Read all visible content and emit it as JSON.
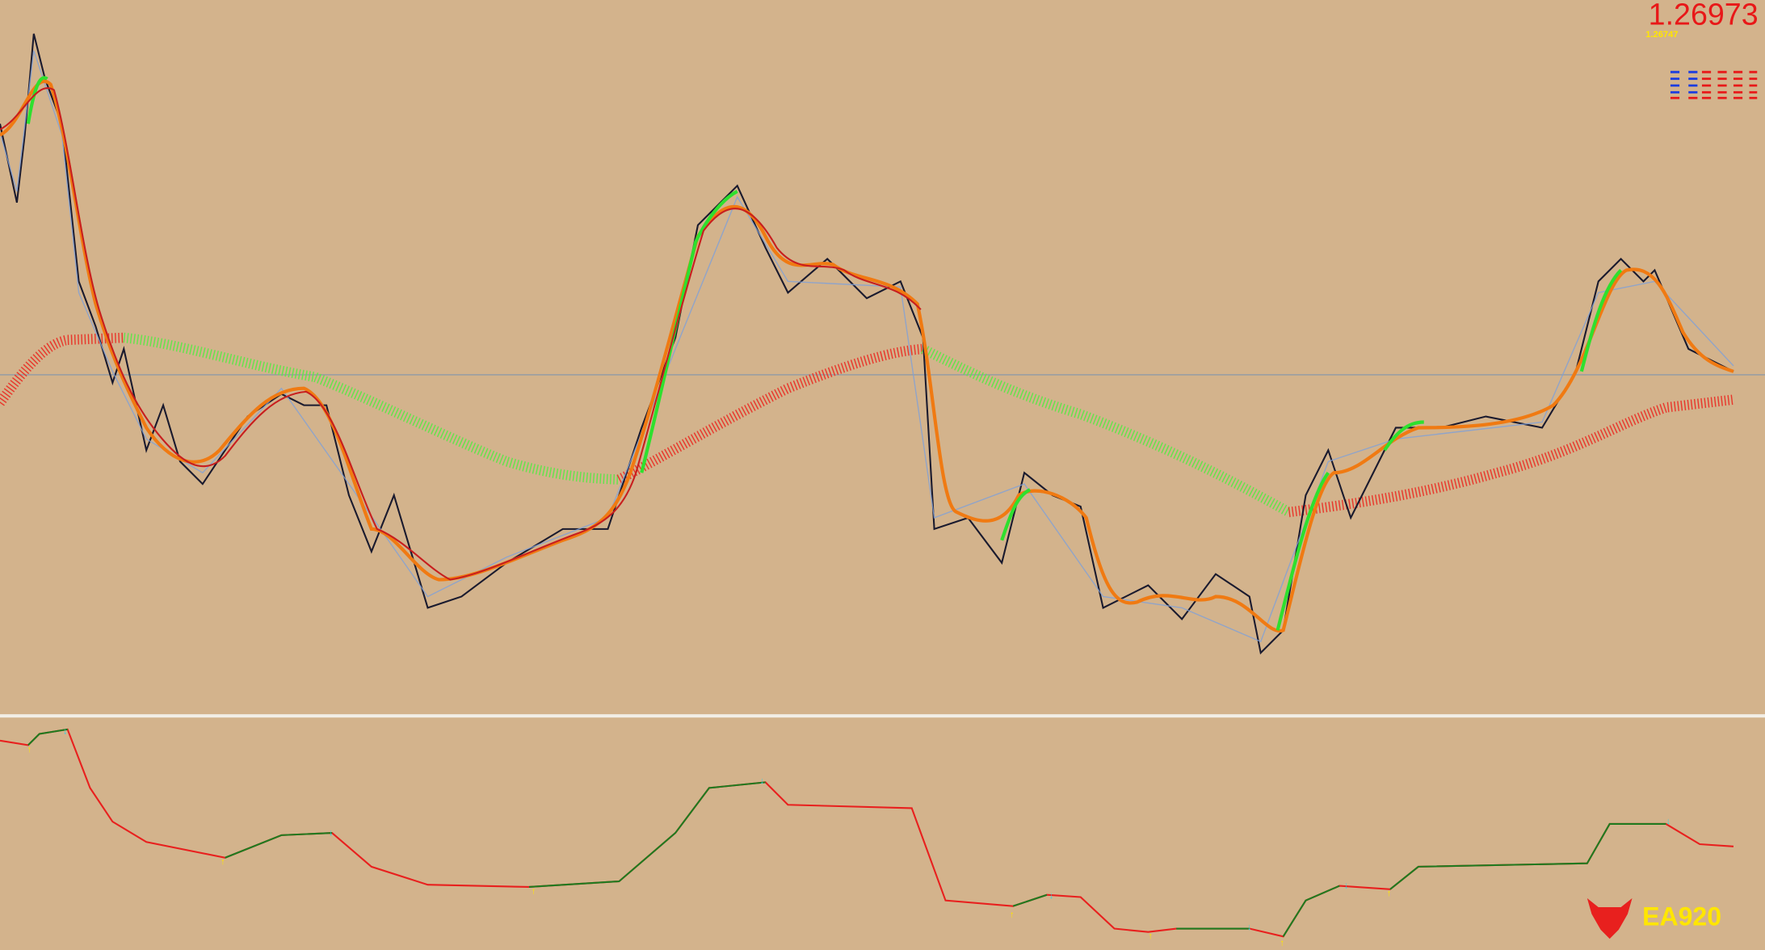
{
  "price": {
    "current": "1.26973",
    "secondary": "1.26747"
  },
  "logo": {
    "text": "EA920"
  }
}
